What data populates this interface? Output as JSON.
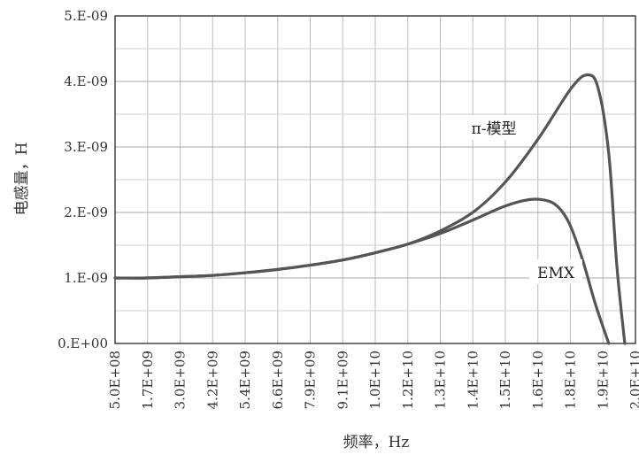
{
  "chart_data": {
    "type": "line",
    "title": "",
    "xlabel": "频率，Hz",
    "ylabel": "电感量，H",
    "x_tick_labels": [
      "5.0E+08",
      "1.7E+09",
      "3.0E+09",
      "4.2E+09",
      "5.4E+09",
      "6.6E+09",
      "7.9E+09",
      "9.1E+09",
      "1.0E+10",
      "1.2E+10",
      "1.3E+10",
      "1.4E+10",
      "1.5E+10",
      "1.6E+10",
      "1.8E+10",
      "1.9E+10",
      "2.0E+10"
    ],
    "y_tick_labels": [
      "0.E+00",
      "1.E-09",
      "2.E-09",
      "3.E-09",
      "4.E-09",
      "5.E-09"
    ],
    "xlim": [
      500000000.0,
      20000000000.0
    ],
    "ylim": [
      0,
      5e-09
    ],
    "grid": true,
    "series": [
      {
        "name": "π-模型",
        "color": "#555555",
        "x": [
          500000000.0,
          1700000000.0,
          3000000000.0,
          4200000000.0,
          5400000000.0,
          6600000000.0,
          7900000000.0,
          9100000000.0,
          10300000000.0,
          11500000000.0,
          12700000000.0,
          14000000000.0,
          15200000000.0,
          16400000000.0,
          17600000000.0,
          18200000000.0,
          18600000000.0,
          19000000000.0,
          19300000000.0,
          19600000000.0
        ],
        "y": [
          1e-09,
          1e-09,
          1.02e-09,
          1.04e-09,
          1.08e-09,
          1.13e-09,
          1.2e-09,
          1.28e-09,
          1.39e-09,
          1.52e-09,
          1.72e-09,
          2.03e-09,
          2.5e-09,
          3.15e-09,
          3.9e-09,
          4.1e-09,
          3.9e-09,
          2.9e-09,
          1.2e-09,
          0.0
        ]
      },
      {
        "name": "EMX",
        "color": "#555555",
        "x": [
          500000000.0,
          1700000000.0,
          3000000000.0,
          4200000000.0,
          5400000000.0,
          6600000000.0,
          7900000000.0,
          9100000000.0,
          10300000000.0,
          11500000000.0,
          12700000000.0,
          14000000000.0,
          15000000000.0,
          15800000000.0,
          16400000000.0,
          17000000000.0,
          17500000000.0,
          18000000000.0,
          18500000000.0,
          19000000000.0
        ],
        "y": [
          1e-09,
          1e-09,
          1.02e-09,
          1.04e-09,
          1.08e-09,
          1.13e-09,
          1.2e-09,
          1.28e-09,
          1.39e-09,
          1.52e-09,
          1.68e-09,
          1.9e-09,
          2.08e-09,
          2.18e-09,
          2.2e-09,
          2.12e-09,
          1.85e-09,
          1.3e-09,
          6e-10,
          0.0
        ]
      }
    ],
    "annotations": [
      {
        "text": "π-模型"
      },
      {
        "text": "EMX"
      }
    ]
  }
}
